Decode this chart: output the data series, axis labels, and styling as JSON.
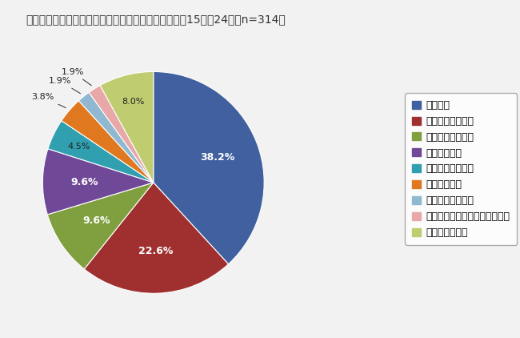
{
  "title": "あなたは、どれくらいの頻度でメイクをしますか？（15歳～24歳　n=314）",
  "labels": [
    "ほぼ毎日",
    "週に４～５日程度",
    "週に２～３日程度",
    "週に１度程度",
    "月に２～３度程度",
    "月に１度程度",
    "数か月に１度程度",
    "数か月に１度よりも少ない頻度",
    "気が向いたとき"
  ],
  "values": [
    38.2,
    22.6,
    9.6,
    9.6,
    4.5,
    3.8,
    1.9,
    1.9,
    8.0
  ],
  "colors": [
    "#4060a0",
    "#a03030",
    "#80a040",
    "#704898",
    "#30a0b0",
    "#e07820",
    "#90b8d0",
    "#e8a8a8",
    "#c0cc70"
  ],
  "title_fontsize": 10,
  "label_fontsize": 9,
  "legend_fontsize": 9,
  "bg_color": "#f2f2f2"
}
